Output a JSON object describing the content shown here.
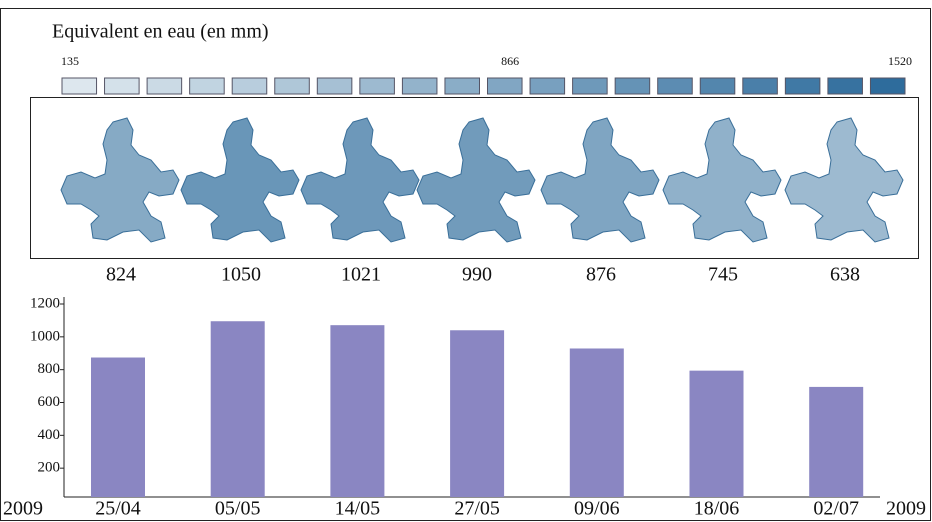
{
  "legend": {
    "title": "Equivalent en eau (en mm)",
    "min": 135,
    "mid": 866,
    "max": 1520,
    "steps": 20,
    "colors": [
      "#dde7ee",
      "#2e6c9c"
    ]
  },
  "maps": {
    "values": [
      824,
      1050,
      1021,
      990,
      876,
      745,
      638
    ]
  },
  "chart_data": {
    "type": "bar",
    "categories": [
      "25/04",
      "05/05",
      "14/05",
      "27/05",
      "09/06",
      "18/06",
      "02/07"
    ],
    "values": [
      874,
      1095,
      1071,
      1040,
      929,
      794,
      695
    ],
    "color": "#8a86c2",
    "ylim": [
      0,
      1200
    ],
    "yticks": [
      200,
      400,
      600,
      800,
      1000,
      1200
    ],
    "year_labels": [
      "2009",
      "2009"
    ]
  }
}
